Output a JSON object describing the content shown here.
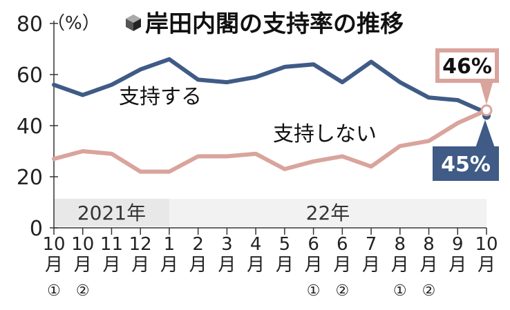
{
  "title": "岸田内閣の支持率の推移",
  "title_icon": "cube-icon",
  "chart_data": {
    "type": "line",
    "y_unit": "（%）",
    "ylim": [
      0,
      80
    ],
    "yticks": [
      "0",
      "20",
      "40",
      "60",
      "80"
    ],
    "x_labels": [
      {
        "num": "10",
        "month": "月",
        "occ": "①"
      },
      {
        "num": "10",
        "month": "月",
        "occ": "②"
      },
      {
        "num": "11",
        "month": "月",
        "occ": ""
      },
      {
        "num": "12",
        "month": "月",
        "occ": ""
      },
      {
        "num": "1",
        "month": "月",
        "occ": ""
      },
      {
        "num": "2",
        "month": "月",
        "occ": ""
      },
      {
        "num": "3",
        "month": "月",
        "occ": ""
      },
      {
        "num": "4",
        "month": "月",
        "occ": ""
      },
      {
        "num": "5",
        "month": "月",
        "occ": ""
      },
      {
        "num": "6",
        "month": "月",
        "occ": "①"
      },
      {
        "num": "6",
        "month": "月",
        "occ": "②"
      },
      {
        "num": "7",
        "month": "月",
        "occ": ""
      },
      {
        "num": "8",
        "month": "月",
        "occ": "①"
      },
      {
        "num": "8",
        "month": "月",
        "occ": "②"
      },
      {
        "num": "9",
        "month": "月",
        "occ": ""
      },
      {
        "num": "10",
        "month": "月",
        "occ": ""
      }
    ],
    "periods": [
      {
        "label": "2021年",
        "from_index": 0,
        "to_index": 3,
        "color": "#e8e8e8"
      },
      {
        "label": "22年",
        "from_index": 4,
        "to_index": 15,
        "color": "#f2f2f2"
      }
    ],
    "series": [
      {
        "name": "支持する",
        "color": "#3f5b86",
        "values": [
          56,
          52,
          56,
          62,
          66,
          58,
          57,
          59,
          63,
          64,
          57,
          65,
          57,
          51,
          50,
          45
        ],
        "callout": "45%"
      },
      {
        "name": "支持しない",
        "color": "#d9a49c",
        "values": [
          27,
          30,
          29,
          22,
          22,
          28,
          28,
          29,
          23,
          26,
          28,
          24,
          32,
          34,
          41,
          46
        ],
        "callout": "46%"
      }
    ],
    "grid": false
  }
}
